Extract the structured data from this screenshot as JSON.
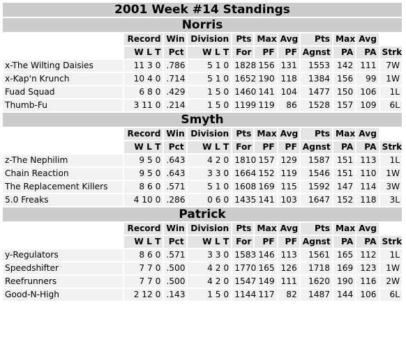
{
  "title": "2001 Week #14 Standings",
  "header_row1": [
    "Record",
    "Win",
    "Division",
    "Pts",
    "Max",
    "Avg",
    "Pts",
    "Max",
    "Avg",
    ""
  ],
  "header_row2": [
    "W L T",
    "Pct",
    "W L T",
    "For",
    "PF",
    "PF",
    "Agnst",
    "PA",
    "PA",
    "Strk"
  ],
  "divisions": [
    {
      "name": "Norris",
      "teams": [
        {
          "name": "x-The Wilting Daisies",
          "wlt": "11 3 0",
          "pct": ".786",
          "div": "5 1 0",
          "pf": "1828",
          "maxpf": "156",
          "avgpf": "131",
          "pa": "1553",
          "maxpa": "142",
          "avgpa": "111",
          "strk": "7W"
        },
        {
          "name": "x-Kap'n Krunch",
          "wlt": "10 4 0",
          "pct": ".714",
          "div": "5 1 0",
          "pf": "1652",
          "maxpf": "190",
          "avgpf": "118",
          "pa": "1384",
          "maxpa": "156",
          "avgpa": "99",
          "strk": "1W"
        },
        {
          "name": "Fuad Squad",
          "wlt": "6 8 0",
          "pct": ".429",
          "div": "1 5 0",
          "pf": "1460",
          "maxpf": "141",
          "avgpf": "104",
          "pa": "1477",
          "maxpa": "150",
          "avgpa": "106",
          "strk": "1L"
        },
        {
          "name": "Thumb-Fu",
          "wlt": "3 11 0",
          "pct": ".214",
          "div": "1 5 0",
          "pf": "1199",
          "maxpf": "119",
          "avgpf": "86",
          "pa": "1528",
          "maxpa": "157",
          "avgpa": "109",
          "strk": "6L"
        }
      ]
    },
    {
      "name": "Smyth",
      "teams": [
        {
          "name": "z-The Nephilim",
          "wlt": "9 5 0",
          "pct": ".643",
          "div": "4 2 0",
          "pf": "1810",
          "maxpf": "157",
          "avgpf": "129",
          "pa": "1587",
          "maxpa": "151",
          "avgpa": "113",
          "strk": "1L"
        },
        {
          "name": "Chain Reaction",
          "wlt": "9 5 0",
          "pct": ".643",
          "div": "3 3 0",
          "pf": "1664",
          "maxpf": "152",
          "avgpf": "119",
          "pa": "1546",
          "maxpa": "151",
          "avgpa": "110",
          "strk": "1W"
        },
        {
          "name": "The Replacement Killers",
          "wlt": "8 6 0",
          "pct": ".571",
          "div": "5 1 0",
          "pf": "1608",
          "maxpf": "169",
          "avgpf": "115",
          "pa": "1592",
          "maxpa": "147",
          "avgpa": "114",
          "strk": "3W"
        },
        {
          "name": "5.0 Freaks",
          "wlt": "4 10 0",
          "pct": ".286",
          "div": "0 6 0",
          "pf": "1435",
          "maxpf": "141",
          "avgpf": "103",
          "pa": "1647",
          "maxpa": "152",
          "avgpa": "118",
          "strk": "3L"
        }
      ]
    },
    {
      "name": "Patrick",
      "teams": [
        {
          "name": "y-Regulators",
          "wlt": "8 6 0",
          "pct": ".571",
          "div": "3 3 0",
          "pf": "1583",
          "maxpf": "146",
          "avgpf": "113",
          "pa": "1561",
          "maxpa": "165",
          "avgpa": "112",
          "strk": "1L"
        },
        {
          "name": "Speedshifter",
          "wlt": "7 7 0",
          "pct": ".500",
          "div": "4 2 0",
          "pf": "1770",
          "maxpf": "165",
          "avgpf": "126",
          "pa": "1718",
          "maxpa": "169",
          "avgpa": "123",
          "strk": "1W"
        },
        {
          "name": "Reefrunners",
          "wlt": "7 7 0",
          "pct": ".500",
          "div": "4 2 0",
          "pf": "1547",
          "maxpf": "149",
          "avgpf": "111",
          "pa": "1620",
          "maxpa": "190",
          "avgpa": "116",
          "strk": "2W"
        },
        {
          "name": "Good-N-High",
          "wlt": "2 12 0",
          "pct": ".143",
          "div": "1 5 0",
          "pf": "1144",
          "maxpf": "117",
          "avgpf": "82",
          "pa": "1487",
          "maxpa": "144",
          "avgpa": "106",
          "strk": "6L"
        }
      ]
    }
  ]
}
